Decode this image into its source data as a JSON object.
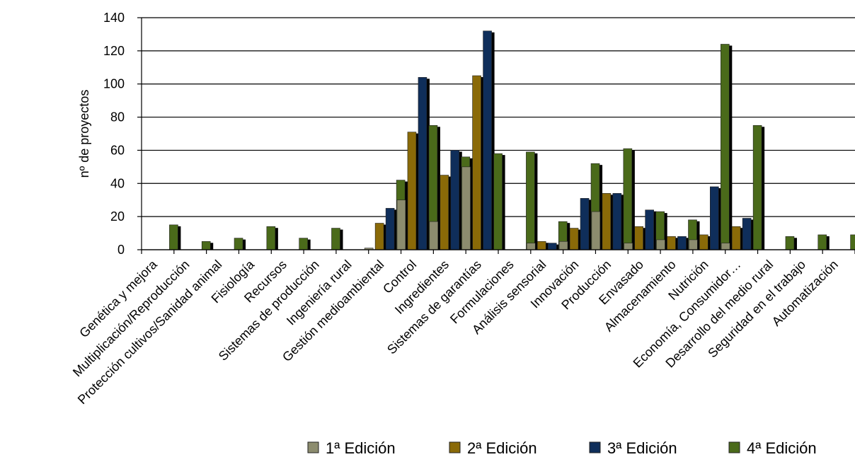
{
  "chart_data": {
    "type": "bar",
    "title": "",
    "xlabel": "",
    "ylabel": "nº de proyectos",
    "ylim": [
      0,
      140
    ],
    "yticks": [
      0,
      20,
      40,
      60,
      80,
      100,
      120,
      140
    ],
    "grid": "horizontal",
    "legend_position": "bottom-right",
    "categories": [
      "Genética y mejora",
      "Multiplicación/Reproducción",
      "Protección cultivos/Sanidad animal",
      "Fisiología",
      "Recursos",
      "Sistemas de producción",
      "Ingeniería rural",
      "Gestión medioambiental",
      "Control",
      "Ingredientes",
      "Sistemas de garantías",
      "Formulaciones",
      "Análisis sensorial",
      "Innovación",
      "Producción",
      "Envasado",
      "Almacenamiento",
      "Nutrición",
      "Economía, Consumidor…",
      "Desarrollo del medio rural",
      "Seguridad en el trabajo",
      "Automatización"
    ],
    "series": [
      {
        "name": "1ª Edición",
        "color": "#8c8c6e",
        "values": [
          0,
          0,
          0,
          0,
          0,
          0,
          0,
          1,
          30,
          17,
          50,
          0,
          4,
          5,
          23,
          4,
          6,
          6,
          4,
          0,
          0,
          0
        ]
      },
      {
        "name": "2ª Edición",
        "color": "#8a6a08",
        "values": [
          0,
          0,
          0,
          0,
          0,
          0,
          0,
          16,
          71,
          45,
          105,
          0,
          5,
          13,
          34,
          14,
          8,
          9,
          14,
          0,
          0,
          0
        ]
      },
      {
        "name": "3ª Edición",
        "color": "#0f2e5a",
        "values": [
          0,
          0,
          0,
          0,
          0,
          0,
          0,
          25,
          104,
          60,
          132,
          0,
          4,
          31,
          34,
          24,
          8,
          38,
          19,
          0,
          0,
          0
        ]
      },
      {
        "name": "4ª Edición",
        "color": "#4a6a1a",
        "values": [
          15,
          5,
          7,
          14,
          7,
          13,
          0,
          42,
          75,
          56,
          58,
          59,
          17,
          52,
          61,
          23,
          18,
          124,
          75,
          8,
          9,
          9
        ]
      }
    ]
  }
}
